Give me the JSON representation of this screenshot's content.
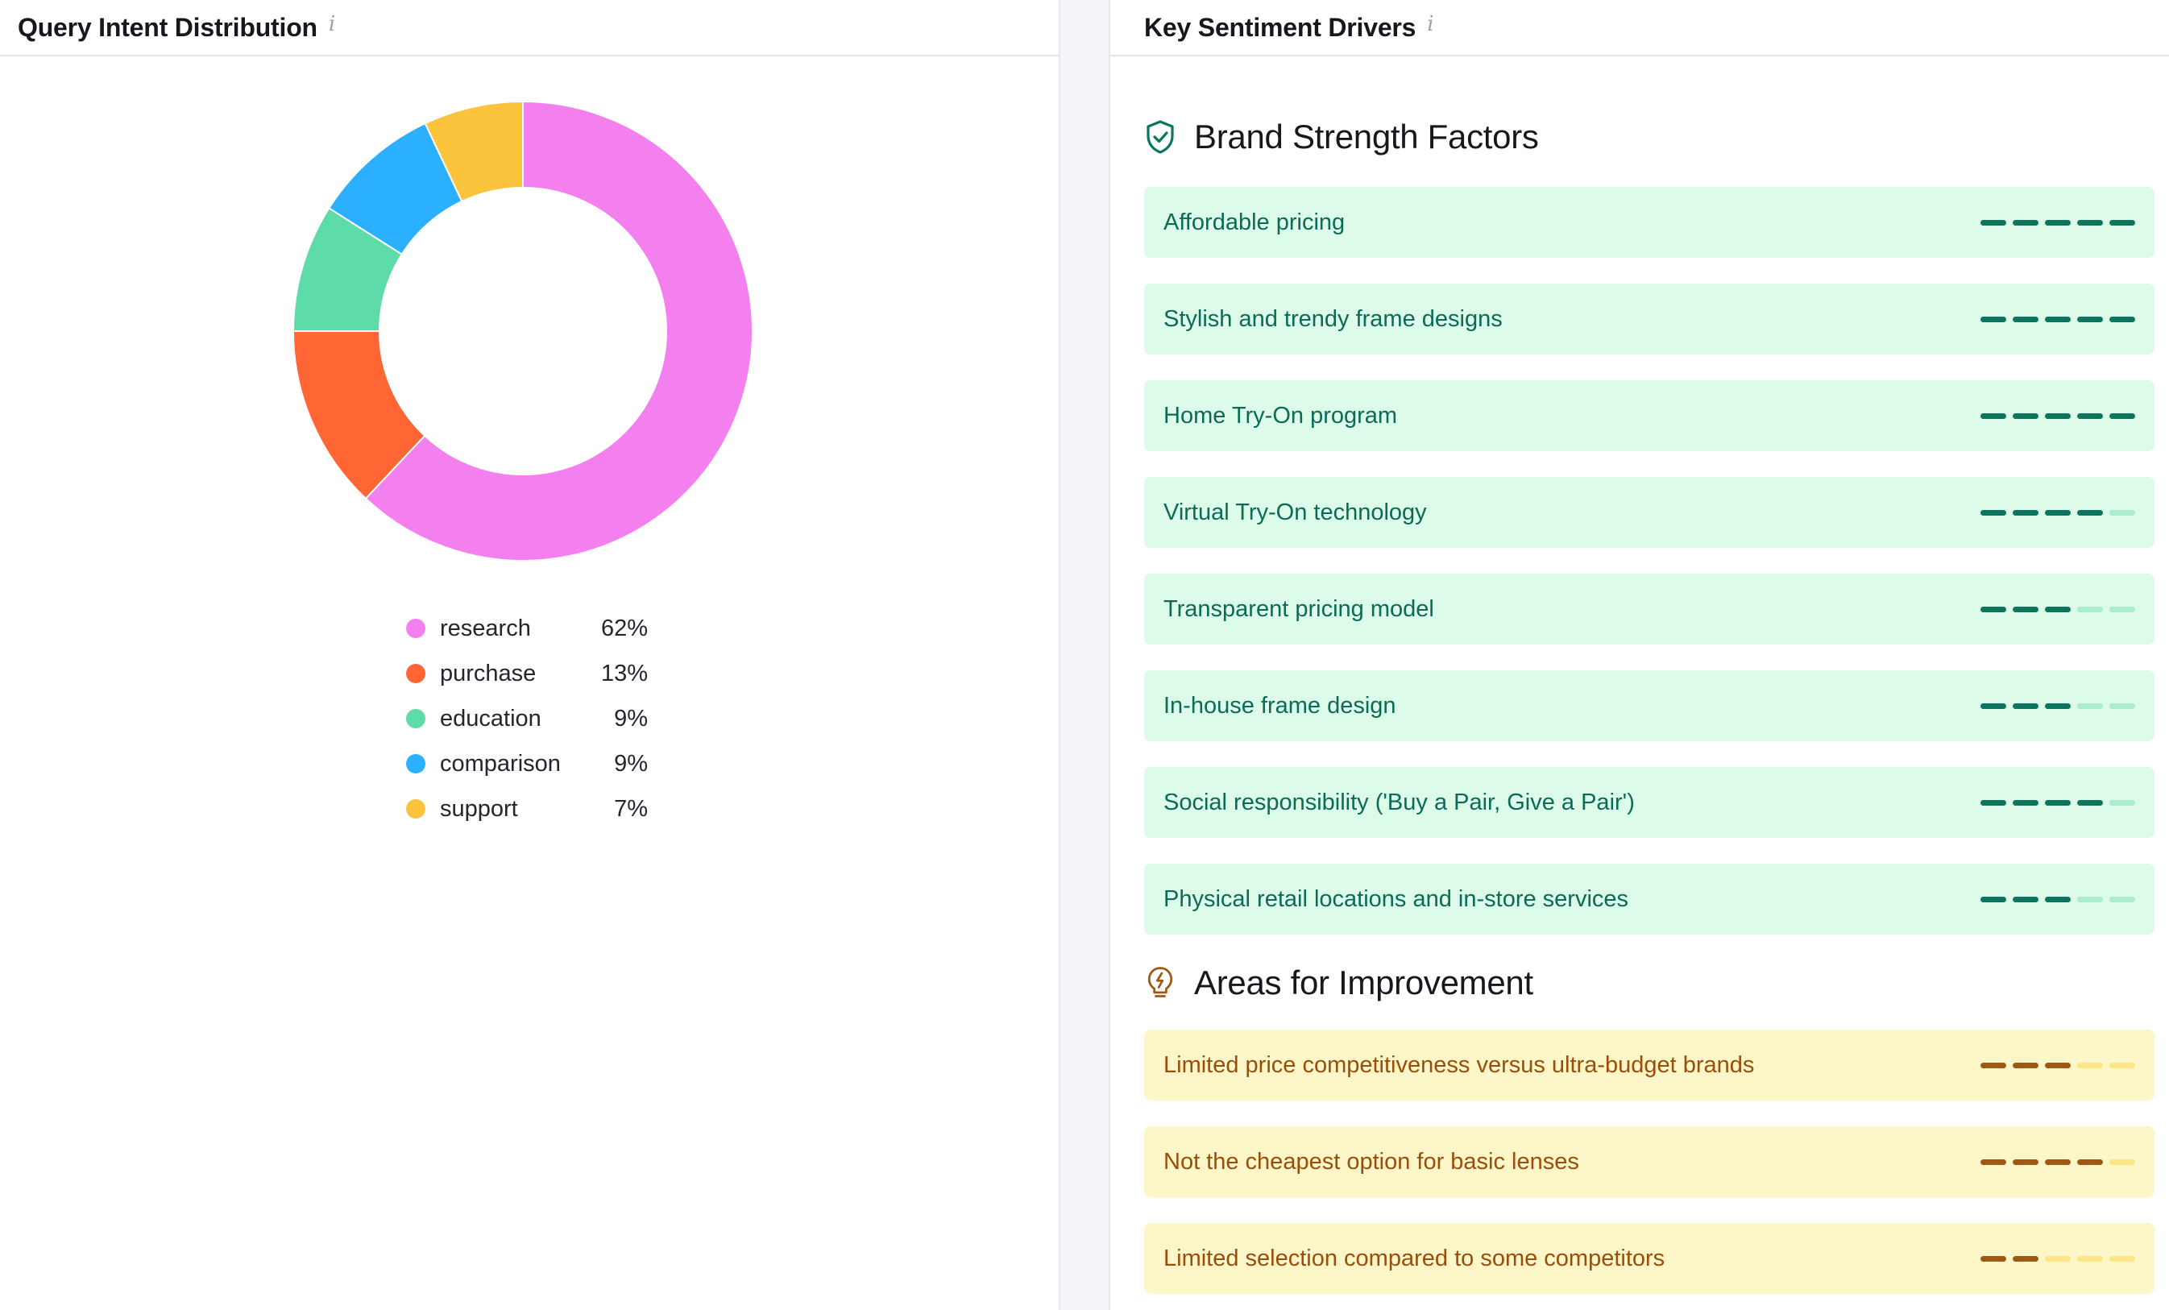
{
  "left_panel": {
    "title": "Query Intent Distribution",
    "info_icon": "info-icon"
  },
  "chart_data": {
    "type": "pie",
    "categories": [
      "research",
      "purchase",
      "education",
      "comparison",
      "support"
    ],
    "values": [
      62,
      13,
      9,
      9,
      7
    ],
    "value_labels": [
      "62%",
      "13%",
      "9%",
      "9%",
      "7%"
    ],
    "colors": [
      "#f47fef",
      "#ff6633",
      "#5ddcaa",
      "#2bb0ff",
      "#fcc33d"
    ],
    "donut": true,
    "legend_position": "bottom"
  },
  "right_panel": {
    "title": "Key Sentiment Drivers",
    "info_icon": "info-icon",
    "strengths": {
      "title": "Brand Strength Factors",
      "icon": "shield-check-icon",
      "items": [
        {
          "label": "Affordable pricing",
          "score": 5
        },
        {
          "label": "Stylish and trendy frame designs",
          "score": 5
        },
        {
          "label": "Home Try-On program",
          "score": 5
        },
        {
          "label": "Virtual Try-On technology",
          "score": 4
        },
        {
          "label": "Transparent pricing model",
          "score": 3
        },
        {
          "label": "In-house frame design",
          "score": 3
        },
        {
          "label": "Social responsibility ('Buy a Pair, Give a Pair')",
          "score": 4
        },
        {
          "label": "Physical retail locations and in-store services",
          "score": 3
        }
      ]
    },
    "improvements": {
      "title": "Areas for Improvement",
      "icon": "lightbulb-icon",
      "items": [
        {
          "label": "Limited price competitiveness versus ultra-budget brands",
          "score": 3
        },
        {
          "label": "Not the cheapest option for basic lenses",
          "score": 4
        },
        {
          "label": "Limited selection compared to some competitors",
          "score": 2
        }
      ]
    },
    "score_max": 5,
    "colors": {
      "strength_bg": "#dcfbe8",
      "strength_text": "#0a6b57",
      "improvement_bg": "#fdf6c8",
      "improvement_text": "#9b4d0a"
    }
  }
}
